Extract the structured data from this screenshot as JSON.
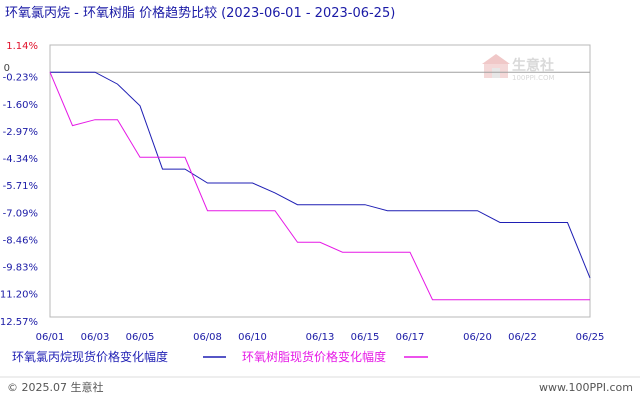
{
  "title": "环氧氯丙烷 - 环氧树脂 价格趋势比较",
  "date_range": "(2023-06-01 - 2023-06-25)",
  "watermark": {
    "name": "生意社",
    "url": "100PPI.COM"
  },
  "legend": [
    {
      "label": "环氧氯丙烷现货价格变化幅度",
      "color": "#1f1fb4"
    },
    {
      "label": "环氧树脂现货价格变化幅度",
      "color": "#e619e6"
    }
  ],
  "footer": {
    "left": "© 2025.07 生意社",
    "right": "www.100PPI.com"
  },
  "colors": {
    "positive_tick": "#e0102a",
    "zero_tick": "#444444",
    "negative_tick": "#1a1aa6",
    "axis_text": "#1a1aa6"
  },
  "chart_data": {
    "type": "line",
    "x": [
      "06/01",
      "06/02",
      "06/03",
      "06/04",
      "06/05",
      "06/06",
      "06/07",
      "06/08",
      "06/09",
      "06/10",
      "06/11",
      "06/12",
      "06/13",
      "06/14",
      "06/15",
      "06/16",
      "06/17",
      "06/18",
      "06/19",
      "06/20",
      "06/21",
      "06/22",
      "06/23",
      "06/24",
      "06/25"
    ],
    "x_tick_labels": [
      "06/01",
      "06/03",
      "06/05",
      "06/08",
      "06/10",
      "06/13",
      "06/15",
      "06/17",
      "06/20",
      "06/22",
      "06/25"
    ],
    "y_tick_labels": [
      "1.14%",
      "0",
      "-0.23%",
      "-1.60%",
      "-2.97%",
      "-4.34%",
      "-5.71%",
      "-7.09%",
      "-8.46%",
      "-9.83%",
      "-11.20%",
      "-12.57%"
    ],
    "y_tick_values": [
      1.14,
      0,
      -0.23,
      -1.6,
      -2.97,
      -4.34,
      -5.71,
      -7.09,
      -8.46,
      -9.83,
      -11.2,
      -12.57
    ],
    "ylim": [
      -12.57,
      1.14
    ],
    "grid": false,
    "series": [
      {
        "name": "环氧氯丙烷现货价格变化幅度",
        "color": "#1f1fb4",
        "values": [
          0,
          0,
          0,
          -0.6,
          -1.7,
          -4.9,
          -4.9,
          -5.6,
          -5.6,
          -5.6,
          -6.1,
          -6.7,
          -6.7,
          -6.7,
          -6.7,
          -7.0,
          -7.0,
          -7.0,
          -7.0,
          -7.0,
          -7.6,
          -7.6,
          -7.6,
          -7.6,
          -10.4
        ]
      },
      {
        "name": "环氧树脂现货价格变化幅度",
        "color": "#e619e6",
        "values": [
          0,
          -2.7,
          -2.4,
          -2.4,
          -4.3,
          -4.3,
          -4.3,
          -7.0,
          -7.0,
          -7.0,
          -7.0,
          -8.6,
          -8.6,
          -9.1,
          -9.1,
          -9.1,
          -9.1,
          -11.5,
          -11.5,
          -11.5,
          -11.5,
          -11.5,
          -11.5,
          -11.5,
          -11.5
        ]
      }
    ]
  }
}
